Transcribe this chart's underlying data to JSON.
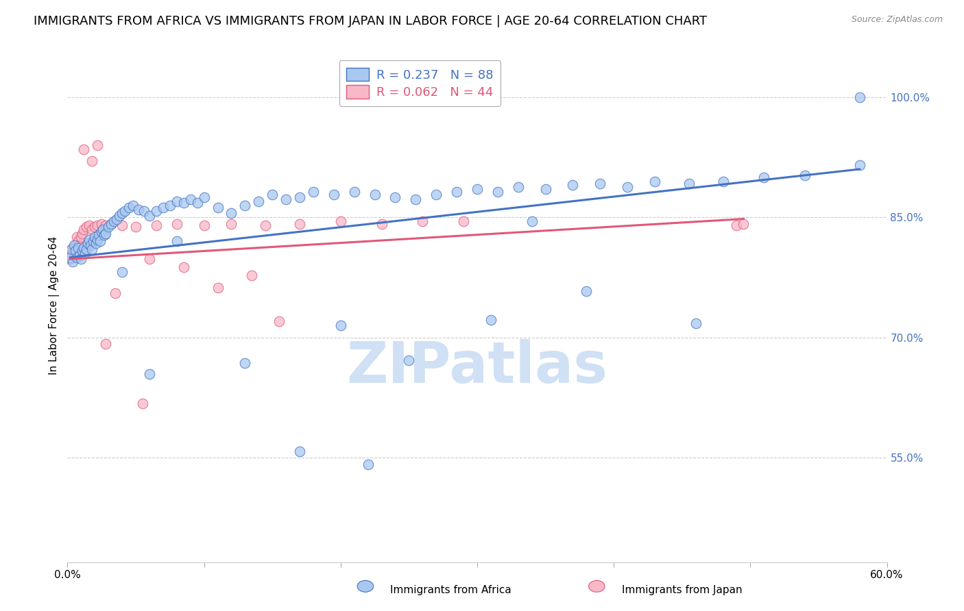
{
  "title": "IMMIGRANTS FROM AFRICA VS IMMIGRANTS FROM JAPAN IN LABOR FORCE | AGE 20-64 CORRELATION CHART",
  "source": "Source: ZipAtlas.com",
  "ylabel": "In Labor Force | Age 20-64",
  "xlim": [
    0.0,
    0.6
  ],
  "ylim": [
    0.42,
    1.06
  ],
  "xticks": [
    0.0,
    0.1,
    0.2,
    0.3,
    0.4,
    0.5,
    0.6
  ],
  "xticklabels": [
    "0.0%",
    "",
    "",
    "",
    "",
    "",
    "60.0%"
  ],
  "ytick_right_values": [
    0.55,
    0.7,
    0.85,
    1.0
  ],
  "ytick_right_labels": [
    "55.0%",
    "70.0%",
    "85.0%",
    "100.0%"
  ],
  "africa_color": "#a8c8f0",
  "africa_color_dark": "#4472c4",
  "japan_color": "#f8b8c8",
  "japan_color_dark": "#e05878",
  "africa_R": 0.237,
  "africa_N": 88,
  "japan_R": 0.062,
  "japan_N": 44,
  "watermark": "ZIPatlas",
  "watermark_color": "#d0e0f5",
  "legend_label_africa": "Immigrants from Africa",
  "legend_label_japan": "Immigrants from Japan",
  "africa_x": [
    0.002,
    0.003,
    0.004,
    0.005,
    0.006,
    0.007,
    0.008,
    0.009,
    0.01,
    0.011,
    0.012,
    0.013,
    0.014,
    0.015,
    0.016,
    0.017,
    0.018,
    0.019,
    0.02,
    0.021,
    0.022,
    0.023,
    0.024,
    0.025,
    0.026,
    0.027,
    0.028,
    0.03,
    0.032,
    0.034,
    0.036,
    0.038,
    0.04,
    0.042,
    0.045,
    0.048,
    0.052,
    0.056,
    0.06,
    0.065,
    0.07,
    0.075,
    0.08,
    0.085,
    0.09,
    0.095,
    0.1,
    0.11,
    0.12,
    0.13,
    0.14,
    0.15,
    0.16,
    0.17,
    0.18,
    0.195,
    0.21,
    0.225,
    0.24,
    0.255,
    0.27,
    0.285,
    0.3,
    0.315,
    0.33,
    0.35,
    0.37,
    0.39,
    0.41,
    0.43,
    0.455,
    0.48,
    0.51,
    0.54,
    0.13,
    0.2,
    0.25,
    0.31,
    0.38,
    0.46,
    0.04,
    0.06,
    0.08,
    0.17,
    0.22,
    0.34,
    0.58,
    0.58
  ],
  "africa_y": [
    0.8,
    0.81,
    0.795,
    0.815,
    0.808,
    0.8,
    0.812,
    0.802,
    0.798,
    0.808,
    0.812,
    0.805,
    0.81,
    0.818,
    0.822,
    0.815,
    0.81,
    0.82,
    0.825,
    0.818,
    0.822,
    0.828,
    0.82,
    0.832,
    0.835,
    0.828,
    0.83,
    0.838,
    0.842,
    0.845,
    0.848,
    0.852,
    0.855,
    0.858,
    0.862,
    0.865,
    0.86,
    0.858,
    0.852,
    0.858,
    0.862,
    0.865,
    0.87,
    0.868,
    0.872,
    0.868,
    0.875,
    0.862,
    0.855,
    0.865,
    0.87,
    0.878,
    0.872,
    0.875,
    0.882,
    0.878,
    0.882,
    0.878,
    0.875,
    0.872,
    0.878,
    0.882,
    0.885,
    0.882,
    0.888,
    0.885,
    0.89,
    0.892,
    0.888,
    0.895,
    0.892,
    0.895,
    0.9,
    0.902,
    0.668,
    0.715,
    0.672,
    0.722,
    0.758,
    0.718,
    0.782,
    0.655,
    0.82,
    0.558,
    0.542,
    0.845,
    1.0,
    0.915
  ],
  "japan_x": [
    0.002,
    0.003,
    0.004,
    0.005,
    0.006,
    0.007,
    0.008,
    0.009,
    0.01,
    0.011,
    0.012,
    0.014,
    0.016,
    0.018,
    0.02,
    0.022,
    0.025,
    0.028,
    0.032,
    0.04,
    0.05,
    0.065,
    0.08,
    0.1,
    0.12,
    0.145,
    0.17,
    0.2,
    0.23,
    0.26,
    0.29,
    0.035,
    0.06,
    0.085,
    0.11,
    0.135,
    0.018,
    0.022,
    0.155,
    0.49,
    0.495,
    0.012,
    0.028,
    0.055
  ],
  "japan_y": [
    0.798,
    0.805,
    0.812,
    0.808,
    0.815,
    0.825,
    0.82,
    0.815,
    0.825,
    0.83,
    0.835,
    0.838,
    0.84,
    0.835,
    0.838,
    0.84,
    0.842,
    0.84,
    0.842,
    0.84,
    0.838,
    0.84,
    0.842,
    0.84,
    0.842,
    0.84,
    0.842,
    0.845,
    0.842,
    0.845,
    0.845,
    0.755,
    0.798,
    0.788,
    0.762,
    0.778,
    0.92,
    0.94,
    0.72,
    0.84,
    0.842,
    0.935,
    0.692,
    0.618
  ],
  "grid_color": "#cccccc",
  "axis_color": "#cccccc",
  "title_fontsize": 13,
  "label_fontsize": 11,
  "tick_fontsize": 11,
  "right_tick_color": "#4472c4",
  "trendline_africa_x0": 0.002,
  "trendline_africa_x1": 0.58,
  "trendline_africa_y0": 0.8,
  "trendline_africa_y1": 0.91,
  "trendline_japan_x0": 0.002,
  "trendline_japan_x1": 0.495,
  "trendline_japan_y0": 0.798,
  "trendline_japan_y1": 0.848
}
